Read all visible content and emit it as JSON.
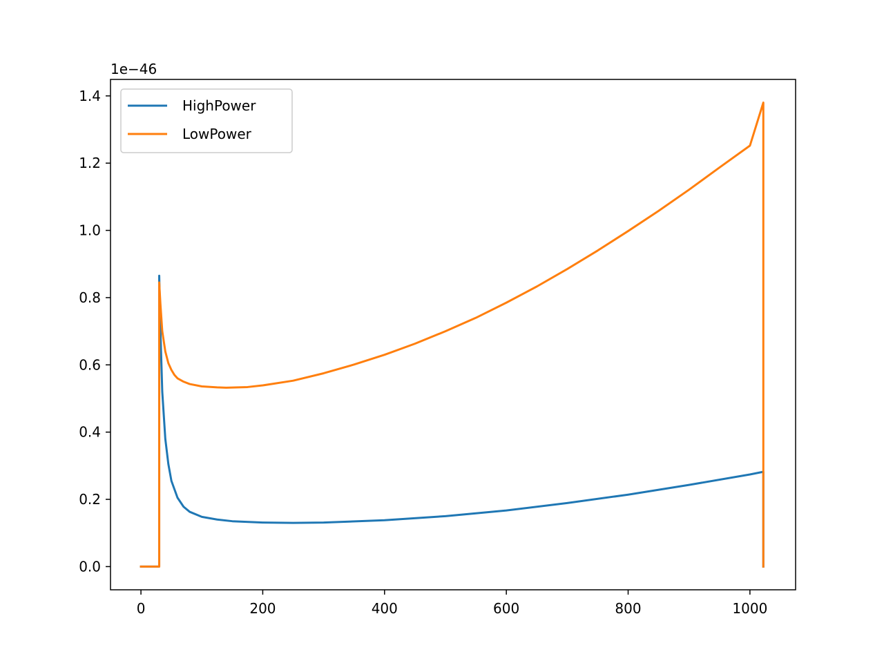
{
  "chart_data": {
    "type": "line",
    "title": "",
    "xlabel": "",
    "ylabel": "",
    "y_offset_text": "1e−46",
    "xlim": [
      -50,
      1075
    ],
    "ylim": [
      -0.069,
      1.449
    ],
    "x_ticks": [
      0,
      200,
      400,
      600,
      800,
      1000
    ],
    "x_tick_labels": [
      "0",
      "200",
      "400",
      "600",
      "800",
      "1000"
    ],
    "y_ticks": [
      0.0,
      0.2,
      0.4,
      0.6,
      0.8,
      1.0,
      1.2,
      1.4
    ],
    "y_tick_labels": [
      "0.0",
      "0.2",
      "0.4",
      "0.6",
      "0.8",
      "1.0",
      "1.2",
      "1.4"
    ],
    "grid": false,
    "legend_position": "upper-left",
    "series": [
      {
        "name": "HighPower",
        "color": "#1f77b4",
        "points": [
          [
            0,
            0
          ],
          [
            30,
            0
          ],
          [
            30,
            0.865
          ],
          [
            32,
            0.7
          ],
          [
            35,
            0.52
          ],
          [
            40,
            0.38
          ],
          [
            45,
            0.305
          ],
          [
            50,
            0.255
          ],
          [
            60,
            0.205
          ],
          [
            70,
            0.178
          ],
          [
            80,
            0.163
          ],
          [
            100,
            0.148
          ],
          [
            125,
            0.14
          ],
          [
            150,
            0.135
          ],
          [
            200,
            0.131
          ],
          [
            250,
            0.13
          ],
          [
            300,
            0.131
          ],
          [
            400,
            0.138
          ],
          [
            500,
            0.15
          ],
          [
            600,
            0.167
          ],
          [
            700,
            0.189
          ],
          [
            800,
            0.214
          ],
          [
            900,
            0.243
          ],
          [
            1000,
            0.274
          ],
          [
            1022,
            0.282
          ],
          [
            1022,
            0
          ]
        ]
      },
      {
        "name": "LowPower",
        "color": "#ff7f0e",
        "points": [
          [
            0,
            0
          ],
          [
            30,
            0
          ],
          [
            30,
            0.845
          ],
          [
            32,
            0.78
          ],
          [
            35,
            0.7
          ],
          [
            40,
            0.64
          ],
          [
            45,
            0.605
          ],
          [
            50,
            0.585
          ],
          [
            55,
            0.57
          ],
          [
            60,
            0.56
          ],
          [
            70,
            0.55
          ],
          [
            80,
            0.543
          ],
          [
            100,
            0.536
          ],
          [
            125,
            0.533
          ],
          [
            140,
            0.532
          ],
          [
            175,
            0.534
          ],
          [
            200,
            0.539
          ],
          [
            250,
            0.553
          ],
          [
            300,
            0.575
          ],
          [
            350,
            0.601
          ],
          [
            400,
            0.63
          ],
          [
            450,
            0.663
          ],
          [
            500,
            0.7
          ],
          [
            550,
            0.74
          ],
          [
            600,
            0.785
          ],
          [
            650,
            0.833
          ],
          [
            700,
            0.885
          ],
          [
            750,
            0.94
          ],
          [
            800,
            0.998
          ],
          [
            850,
            1.058
          ],
          [
            900,
            1.121
          ],
          [
            950,
            1.187
          ],
          [
            1000,
            1.252
          ],
          [
            1022,
            1.38
          ],
          [
            1022,
            0
          ]
        ]
      }
    ]
  }
}
